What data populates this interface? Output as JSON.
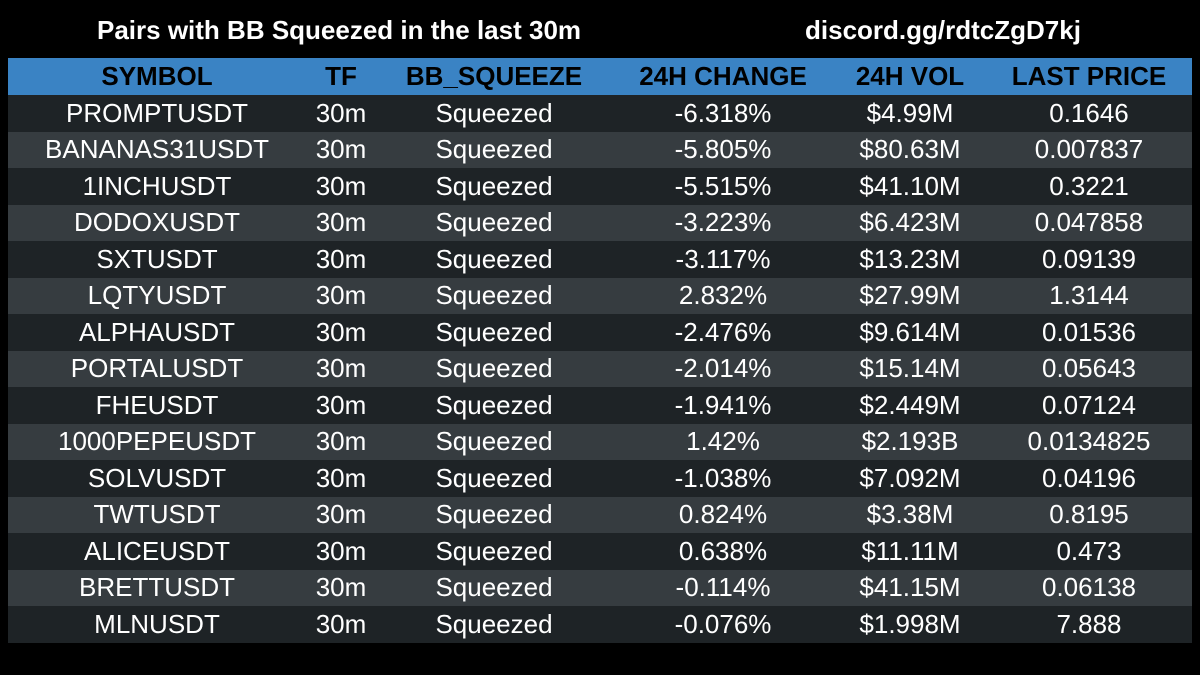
{
  "header": {
    "title": "Pairs with BB Squeezed in the last 30m",
    "link": "discord.gg/rdtcZgD7kj"
  },
  "colors": {
    "header_bg": "#3a83c4",
    "row_dark": "#1e2326",
    "row_light": "#363c40",
    "page_bg": "#000000",
    "text": "#ffffff",
    "header_text": "#000000"
  },
  "table": {
    "columns": [
      "SYMBOL",
      "TF",
      "BB_SQUEEZE",
      "24H CHANGE",
      "24H VOL",
      "LAST PRICE"
    ],
    "rows": [
      [
        "PROMPTUSDT",
        "30m",
        "Squeezed",
        "-6.318%",
        "$4.99M",
        "0.1646"
      ],
      [
        "BANANAS31USDT",
        "30m",
        "Squeezed",
        "-5.805%",
        "$80.63M",
        "0.007837"
      ],
      [
        "1INCHUSDT",
        "30m",
        "Squeezed",
        "-5.515%",
        "$41.10M",
        "0.3221"
      ],
      [
        "DODOXUSDT",
        "30m",
        "Squeezed",
        "-3.223%",
        "$6.423M",
        "0.047858"
      ],
      [
        "SXTUSDT",
        "30m",
        "Squeezed",
        "-3.117%",
        "$13.23M",
        "0.09139"
      ],
      [
        "LQTYUSDT",
        "30m",
        "Squeezed",
        "2.832%",
        "$27.99M",
        "1.3144"
      ],
      [
        "ALPHAUSDT",
        "30m",
        "Squeezed",
        "-2.476%",
        "$9.614M",
        "0.01536"
      ],
      [
        "PORTALUSDT",
        "30m",
        "Squeezed",
        "-2.014%",
        "$15.14M",
        "0.05643"
      ],
      [
        "FHEUSDT",
        "30m",
        "Squeezed",
        "-1.941%",
        "$2.449M",
        "0.07124"
      ],
      [
        "1000PEPEUSDT",
        "30m",
        "Squeezed",
        "1.42%",
        "$2.193B",
        "0.0134825"
      ],
      [
        "SOLVUSDT",
        "30m",
        "Squeezed",
        "-1.038%",
        "$7.092M",
        "0.04196"
      ],
      [
        "TWTUSDT",
        "30m",
        "Squeezed",
        "0.824%",
        "$3.38M",
        "0.8195"
      ],
      [
        "ALICEUSDT",
        "30m",
        "Squeezed",
        "0.638%",
        "$11.11M",
        "0.473"
      ],
      [
        "BRETTUSDT",
        "30m",
        "Squeezed",
        "-0.114%",
        "$41.15M",
        "0.06138"
      ],
      [
        "MLNUSDT",
        "30m",
        "Squeezed",
        "-0.076%",
        "$1.998M",
        "7.888"
      ]
    ]
  }
}
